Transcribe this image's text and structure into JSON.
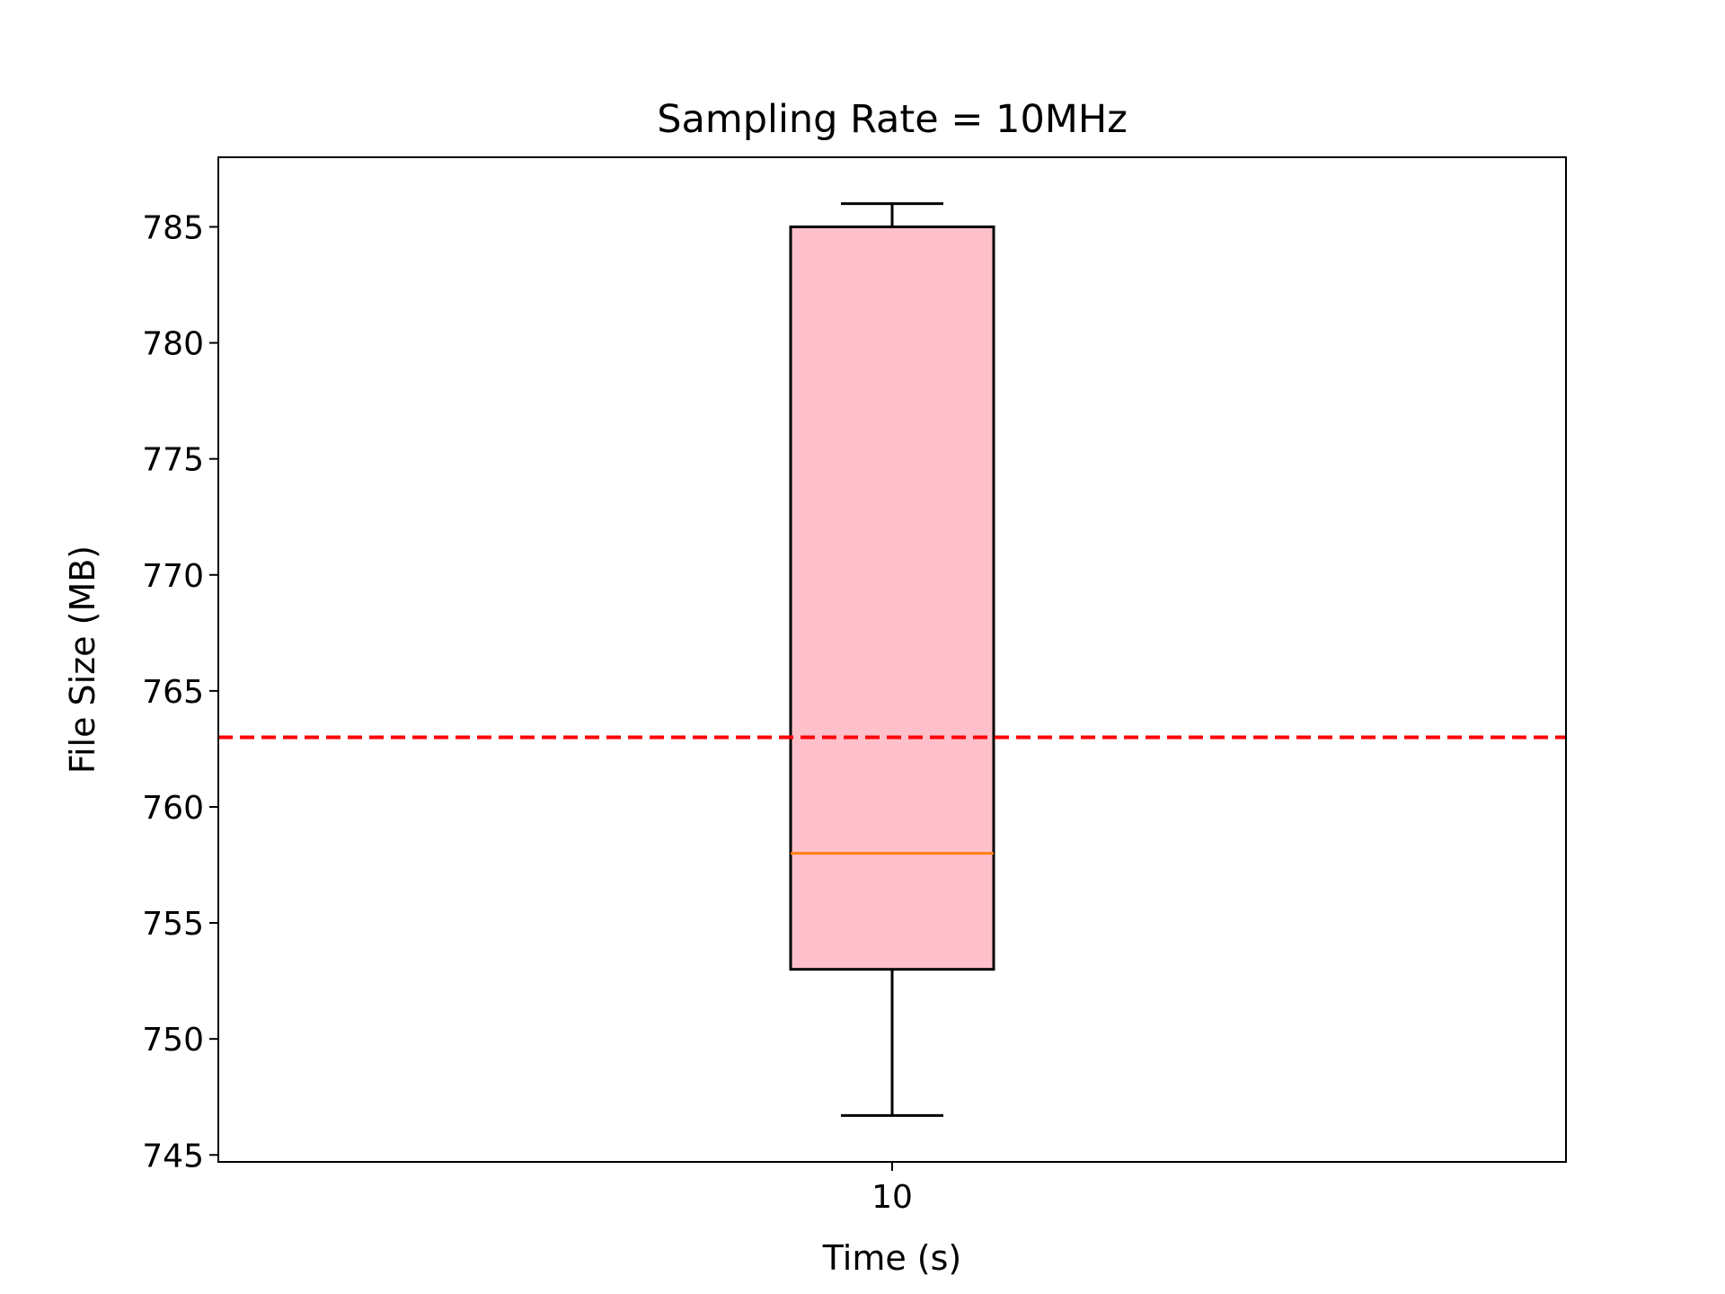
{
  "chart_data": {
    "type": "box",
    "title": "Sampling Rate = 10MHz",
    "xlabel": "Time (s)",
    "ylabel": "File Size (MB)",
    "categories": [
      "10"
    ],
    "ylim": [
      744.7,
      788.0
    ],
    "yticks": [
      745,
      750,
      755,
      760,
      765,
      770,
      775,
      780,
      785
    ],
    "boxes": [
      {
        "category": "10",
        "whisker_low": 746.7,
        "q1": 753.0,
        "median": 758.0,
        "q3": 785.0,
        "whisker_high": 786.0
      }
    ],
    "reference_line": {
      "y": 763.0,
      "style": "dashed"
    },
    "grid": false,
    "legend": "none",
    "colors": {
      "box_fill": "#ffc0cb",
      "median": "#ff7f0e",
      "reference_line": "#ff0000",
      "edges": "#000000"
    }
  }
}
